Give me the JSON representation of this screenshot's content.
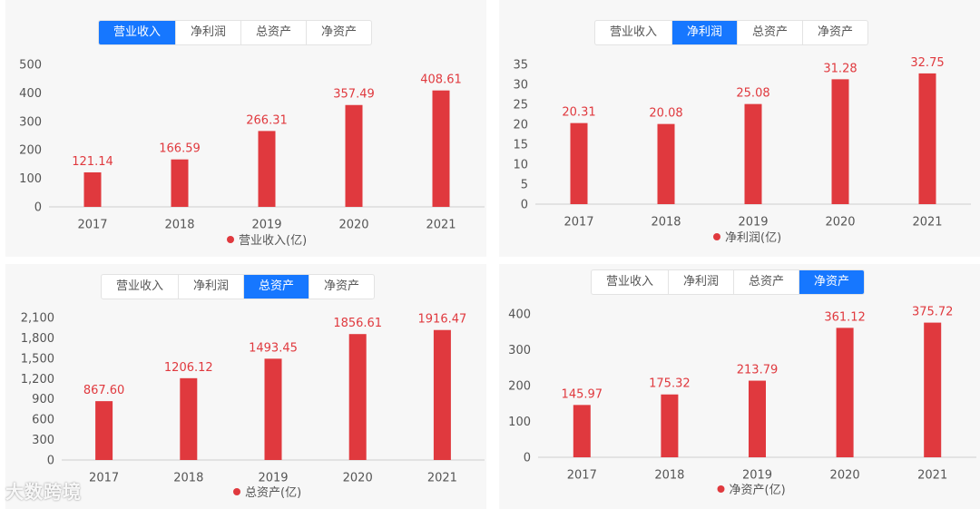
{
  "tabs": [
    "营业收入",
    "净利润",
    "总资产",
    "净资产"
  ],
  "watermark": "大数跨境",
  "colors": {
    "bar": "#e0393e",
    "tab_active": "#1677ff"
  },
  "chart_data": [
    {
      "type": "bar",
      "active_tab": 0,
      "categories": [
        "2017",
        "2018",
        "2019",
        "2020",
        "2021"
      ],
      "series": [
        {
          "name": "营业收入(亿)",
          "values": [
            121.14,
            166.59,
            266.31,
            357.49,
            408.61
          ]
        }
      ],
      "value_labels": [
        "121.14",
        "166.59",
        "266.31",
        "357.49",
        "408.61"
      ],
      "ylim": [
        0,
        500
      ],
      "yticks": [
        "0",
        "100",
        "200",
        "300",
        "400",
        "500"
      ],
      "legend": "bottom"
    },
    {
      "type": "bar",
      "active_tab": 1,
      "categories": [
        "2017",
        "2018",
        "2019",
        "2020",
        "2021"
      ],
      "series": [
        {
          "name": "净利润(亿)",
          "values": [
            20.31,
            20.08,
            25.08,
            31.28,
            32.75
          ]
        }
      ],
      "value_labels": [
        "20.31",
        "20.08",
        "25.08",
        "31.28",
        "32.75"
      ],
      "ylim": [
        0,
        35
      ],
      "yticks": [
        "0",
        "5",
        "10",
        "15",
        "20",
        "25",
        "30",
        "35"
      ],
      "legend": "bottom"
    },
    {
      "type": "bar",
      "active_tab": 2,
      "categories": [
        "2017",
        "2018",
        "2019",
        "2020",
        "2021"
      ],
      "series": [
        {
          "name": "总资产(亿)",
          "values": [
            867.6,
            1206.12,
            1493.45,
            1856.61,
            1916.47
          ]
        }
      ],
      "value_labels": [
        "867.60",
        "1206.12",
        "1493.45",
        "1856.61",
        "1916.47"
      ],
      "ylim": [
        0,
        2100
      ],
      "yticks": [
        "0",
        "300",
        "600",
        "900",
        "1,200",
        "1,500",
        "1,800",
        "2,100"
      ],
      "legend": "bottom"
    },
    {
      "type": "bar",
      "active_tab": 3,
      "categories": [
        "2017",
        "2018",
        "2019",
        "2020",
        "2021"
      ],
      "series": [
        {
          "name": "净资产(亿)",
          "values": [
            145.97,
            175.32,
            213.79,
            361.12,
            375.72
          ]
        }
      ],
      "value_labels": [
        "145.97",
        "175.32",
        "213.79",
        "361.12",
        "375.72"
      ],
      "ylim": [
        0,
        400
      ],
      "yticks": [
        "0",
        "100",
        "200",
        "300",
        "400"
      ],
      "legend": "bottom"
    }
  ]
}
